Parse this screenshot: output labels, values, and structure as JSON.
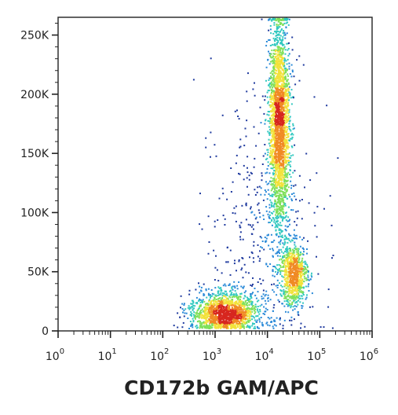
{
  "chart_data": {
    "type": "scatter",
    "subtype": "flow-cytometry density dot plot",
    "xlabel": "CD172b  GAM/APC",
    "ylabel": "",
    "x_scale": "log",
    "y_scale": "linear",
    "xlim": [
      1,
      1000000
    ],
    "ylim": [
      0,
      265000
    ],
    "x_ticks": [
      {
        "base": "10",
        "exp": "0",
        "value": 1
      },
      {
        "base": "10",
        "exp": "1",
        "value": 10
      },
      {
        "base": "10",
        "exp": "2",
        "value": 100
      },
      {
        "base": "10",
        "exp": "3",
        "value": 1000
      },
      {
        "base": "10",
        "exp": "4",
        "value": 10000
      },
      {
        "base": "10",
        "exp": "5",
        "value": 100000
      },
      {
        "base": "10",
        "exp": "6",
        "value": 1000000
      }
    ],
    "y_ticks": [
      {
        "label": "0",
        "value": 0
      },
      {
        "label": "50K",
        "value": 50000
      },
      {
        "label": "100K",
        "value": 100000
      },
      {
        "label": "150K",
        "value": 150000
      },
      {
        "label": "200K",
        "value": 200000
      },
      {
        "label": "250K",
        "value": 250000
      }
    ],
    "grid": false,
    "legend": "none",
    "colormap": [
      "#1f3a9e",
      "#2b8ad8",
      "#33c9c0",
      "#7fe05a",
      "#f2e23a",
      "#f08a24",
      "#d7261e"
    ],
    "populations": [
      {
        "x_center": 1500,
        "y_center": 15000,
        "x_spread_decades": 0.32,
        "y_spread": 9000,
        "count": 1500
      },
      {
        "x_center": 17000,
        "y_center": 175000,
        "x_spread_decades": 0.1,
        "y_spread": 45000,
        "count": 2400
      },
      {
        "x_center": 32000,
        "y_center": 47000,
        "x_spread_decades": 0.13,
        "y_spread": 13000,
        "count": 800
      },
      {
        "x_center": 9000,
        "y_center": 75000,
        "x_spread_decades": 0.5,
        "y_spread": 55000,
        "count": 450
      }
    ]
  }
}
